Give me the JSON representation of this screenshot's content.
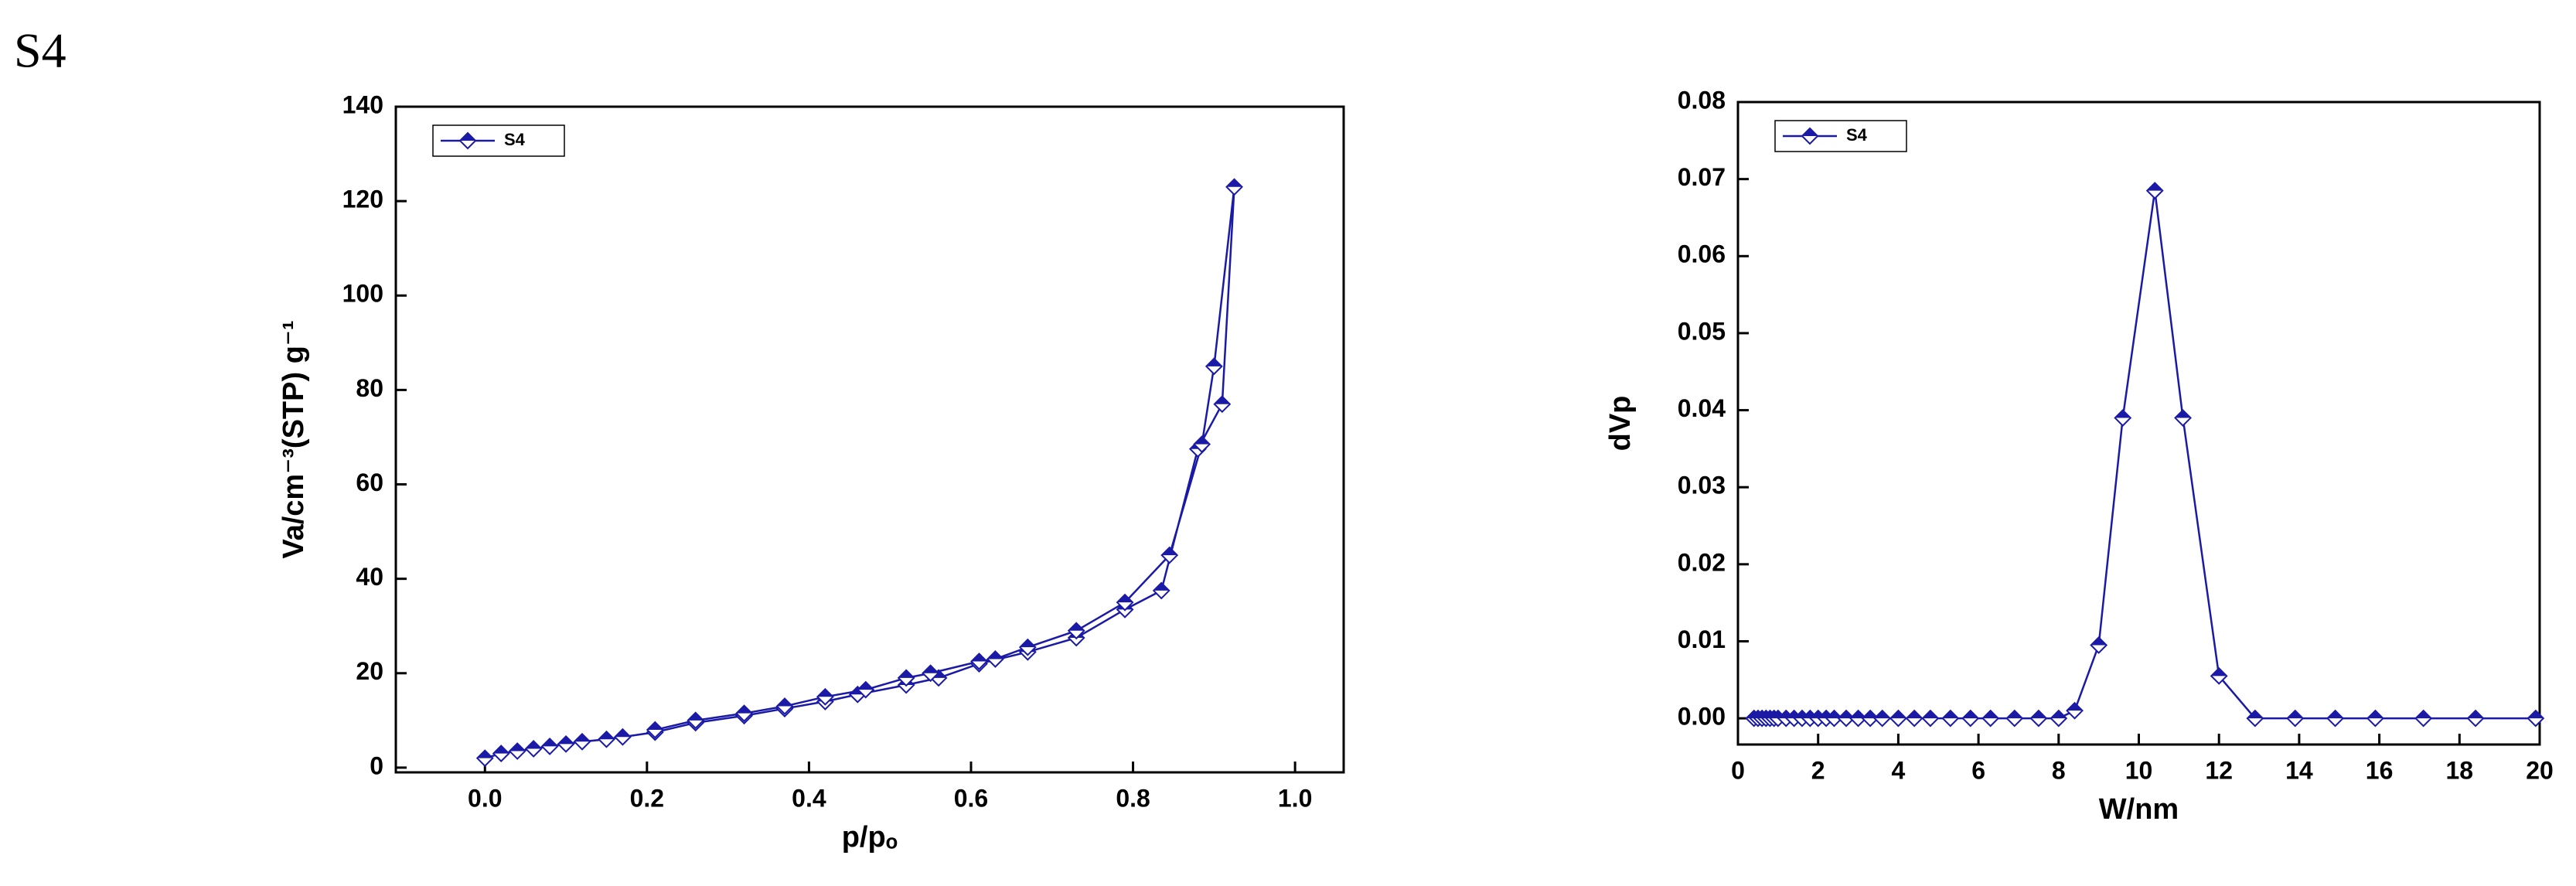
{
  "label": "S4",
  "chart_data": [
    {
      "type": "line",
      "xlabel": "p/pₒ",
      "ylabel": "Va/cm⁻³(STP) g⁻¹",
      "xlim": [
        -0.11,
        1.06
      ],
      "ylim": [
        -1,
        140
      ],
      "xticks": [
        {
          "value": 0,
          "label": "0.0"
        },
        0.2,
        0.4,
        0.6,
        0.8,
        {
          "value": 1,
          "label": "1.0"
        }
      ],
      "yticks": [
        0,
        20,
        40,
        60,
        80,
        100,
        120,
        140
      ],
      "legend": "upper left",
      "series": [
        {
          "name": "S4",
          "color": "#1a1aa6",
          "x": [
            0.0,
            0.02,
            0.04,
            0.06,
            0.08,
            0.1,
            0.12,
            0.15,
            0.17,
            0.21,
            0.26,
            0.32,
            0.37,
            0.42,
            0.46,
            0.52,
            0.56,
            0.61,
            0.67,
            0.73,
            0.79,
            0.835,
            0.88,
            0.91,
            0.925,
            0.9,
            0.885,
            0.845,
            0.79,
            0.73,
            0.67,
            0.63,
            0.61,
            0.55,
            0.52,
            0.47,
            0.42,
            0.37,
            0.32,
            0.26,
            0.21
          ],
          "values": [
            2,
            3,
            3.5,
            4,
            4.5,
            5,
            5.5,
            6,
            6.5,
            7.5,
            9.5,
            11,
            12.5,
            14,
            15.5,
            17.5,
            19,
            22,
            24.5,
            27.5,
            33.5,
            37.5,
            67.5,
            77,
            123,
            85,
            68.5,
            45,
            35,
            29,
            25.5,
            23,
            22.5,
            20,
            19,
            16.5,
            15,
            13,
            11.5,
            10,
            8
          ]
        }
      ]
    },
    {
      "type": "line",
      "xlabel": "W/nm",
      "ylabel": "dVp",
      "xlim": [
        0,
        20
      ],
      "ylim": [
        -0.0034,
        0.08
      ],
      "xticks": [
        0,
        2,
        4,
        6,
        8,
        10,
        12,
        14,
        16,
        18,
        20
      ],
      "yticks": [
        {
          "value": 0,
          "label": "0.00"
        },
        0.01,
        0.02,
        0.03,
        0.04,
        0.05,
        0.06,
        0.07,
        0.08
      ],
      "legend": "upper left",
      "series": [
        {
          "name": "S4",
          "color": "#1a1aa6",
          "x": [
            0.4,
            0.5,
            0.6,
            0.7,
            0.8,
            0.9,
            1.0,
            1.2,
            1.4,
            1.6,
            1.8,
            2.0,
            2.2,
            2.4,
            2.7,
            3.0,
            3.3,
            3.6,
            4.0,
            4.4,
            4.8,
            5.3,
            5.8,
            6.3,
            6.9,
            7.5,
            8.0,
            8.4,
            9.0,
            9.6,
            10.4,
            11.1,
            12.0,
            12.9,
            13.9,
            14.9,
            15.9,
            17.1,
            18.4,
            19.9
          ],
          "values": [
            0,
            0,
            0,
            0,
            0,
            0,
            0,
            0,
            0,
            0,
            0,
            0,
            0,
            0,
            0,
            0,
            0,
            0,
            0,
            0,
            0,
            0,
            0,
            0,
            0,
            0,
            0,
            0.001,
            0.0095,
            0.039,
            0.0685,
            0.039,
            0.0055,
            0,
            0,
            0,
            0,
            0,
            0,
            0
          ]
        }
      ]
    }
  ]
}
